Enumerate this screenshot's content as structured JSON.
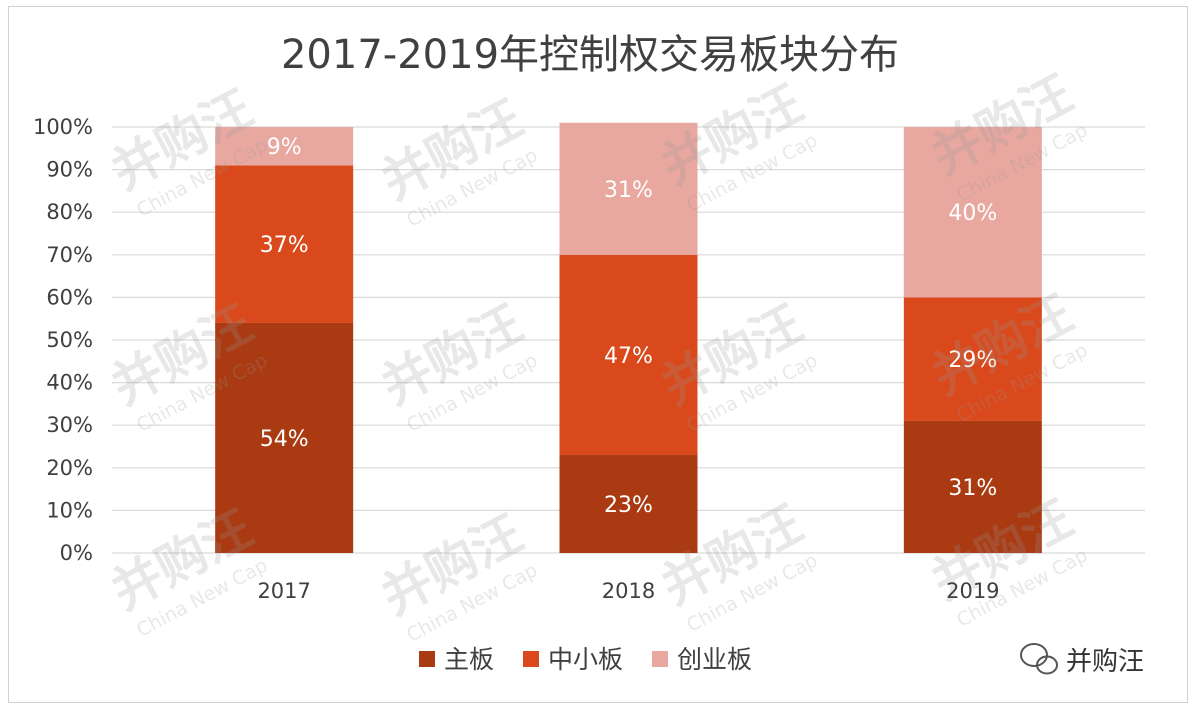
{
  "colors": {
    "main": "#A93A12",
    "sme": "#D9491C",
    "chinext": "#E8A8A0",
    "grid": "#D9D9D9",
    "text": "#404040"
  },
  "chart_data": {
    "type": "bar",
    "stacked": true,
    "title": "2017-2019年控制权交易板块分布",
    "categories": [
      "2017",
      "2018",
      "2019"
    ],
    "series": [
      {
        "name": "主板",
        "values": [
          54,
          23,
          31
        ],
        "labels": [
          "54%",
          "23%",
          "31%"
        ]
      },
      {
        "name": "中小板",
        "values": [
          37,
          47,
          29
        ],
        "labels": [
          "37%",
          "47%",
          "29%"
        ]
      },
      {
        "name": "创业板",
        "values": [
          9,
          31,
          40
        ],
        "labels": [
          "9%",
          "31%",
          "40%"
        ]
      }
    ],
    "ylim": [
      0,
      100
    ],
    "y_ticks": [
      "0%",
      "10%",
      "20%",
      "30%",
      "40%",
      "50%",
      "60%",
      "70%",
      "80%",
      "90%",
      "100%"
    ],
    "grid": true,
    "legend_position": "bottom"
  },
  "watermark": {
    "text": "并购汪",
    "sub": "China New Cap"
  },
  "brand": {
    "name": "并购汪",
    "icon": "wechat-icon"
  }
}
